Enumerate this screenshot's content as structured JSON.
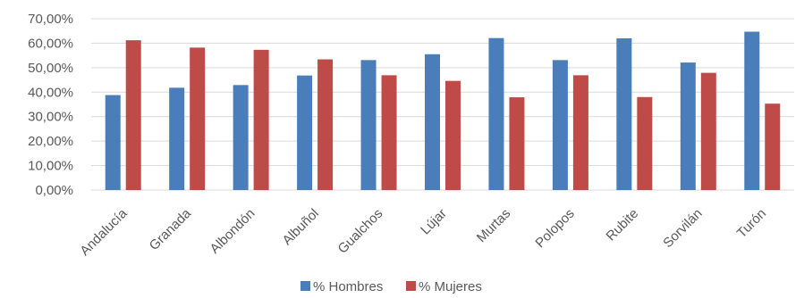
{
  "chart_data": {
    "type": "bar",
    "categories": [
      "Andalucía",
      "Granada",
      "Albondón",
      "Albuñol",
      "Gualchos",
      "Lújar",
      "Murtas",
      "Polopos",
      "Rubite",
      "Sorvilán",
      "Turón"
    ],
    "series": [
      {
        "name": "% Hombres",
        "color": "#4a7ebb",
        "values": [
          38.8,
          41.8,
          42.9,
          46.8,
          53.1,
          55.5,
          62.1,
          53.1,
          62.0,
          52.1,
          64.7
        ]
      },
      {
        "name": "% Mujeres",
        "color": "#be4b48",
        "values": [
          61.2,
          58.2,
          57.3,
          53.4,
          46.9,
          44.6,
          37.9,
          46.9,
          38.0,
          47.9,
          35.3
        ]
      }
    ],
    "title": "",
    "xlabel": "",
    "ylabel": "",
    "ylim": [
      0,
      70
    ],
    "y_ticks": [
      "0,00%",
      "10,00%",
      "20,00%",
      "30,00%",
      "40,00%",
      "50,00%",
      "60,00%",
      "70,00%"
    ],
    "grid": true,
    "legend_position": "bottom",
    "colors": {
      "gridline": "#d9d9d9",
      "axis_text": "#595959"
    }
  }
}
